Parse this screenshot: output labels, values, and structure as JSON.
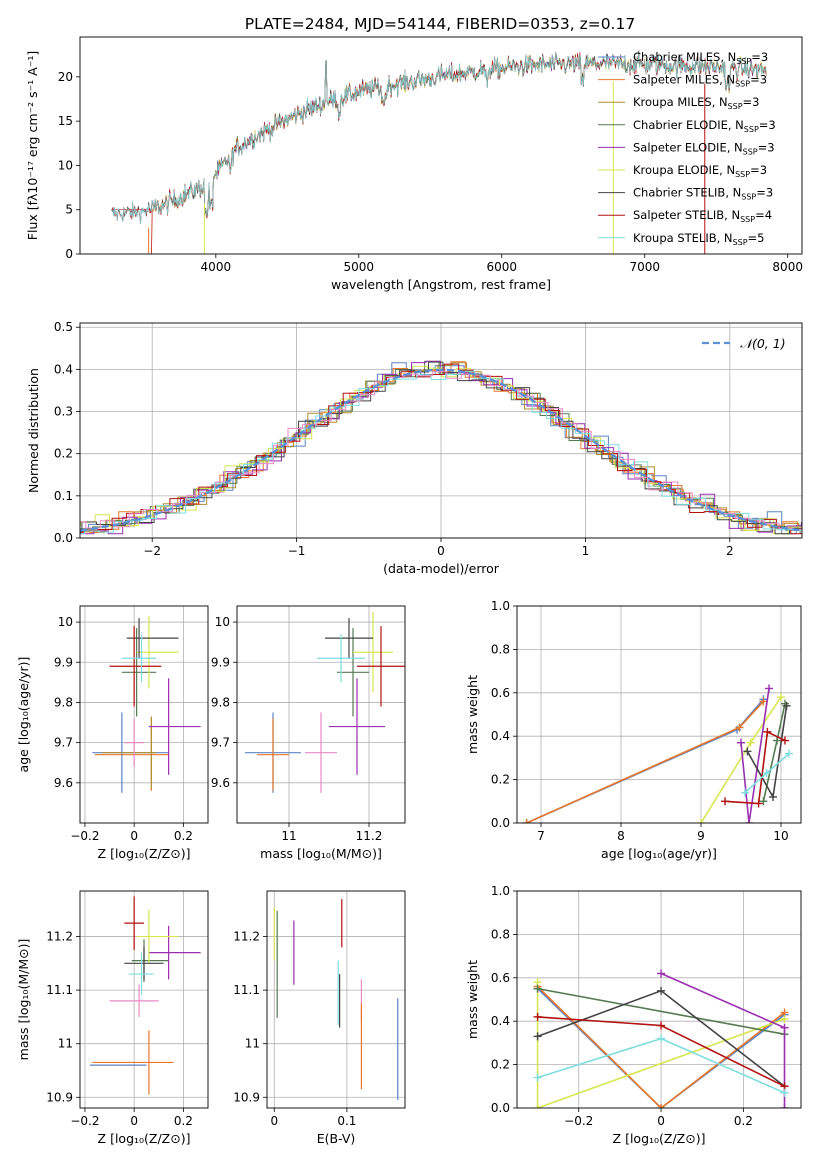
{
  "figure": {
    "title": "PLATE=2484, MJD=54144, FIBERID=0353, z=0.17"
  },
  "chart_data": [
    {
      "id": "spectrum",
      "type": "line",
      "xlabel": "wavelength [Angstrom, rest frame]",
      "ylabel": "Flux [fλ10⁻¹⁷ erg cm⁻² s⁻¹ A⁻¹]",
      "xlim": [
        3050,
        8100
      ],
      "ylim": [
        0,
        24.5
      ],
      "xticks": [
        4000,
        5000,
        6000,
        7000,
        8000
      ],
      "yticks": [
        0,
        5,
        10,
        15,
        20
      ],
      "grid": false,
      "legend_position": "right",
      "spectrum_anchors": {
        "x": [
          3270,
          3500,
          3650,
          3800,
          3950,
          4050,
          4150,
          4300,
          4450,
          4600,
          4800,
          5000,
          5200,
          5400,
          5600,
          5800,
          6000,
          6200,
          6400,
          6600,
          6800,
          7000,
          7200,
          7400,
          7600,
          7800
        ],
        "y": [
          4.5,
          4.8,
          5.6,
          6.8,
          8.0,
          10.0,
          12.0,
          13.5,
          14.8,
          16.0,
          17.3,
          18.3,
          19.0,
          19.6,
          20.1,
          20.6,
          21.0,
          21.3,
          21.4,
          21.5,
          21.5,
          21.4,
          21.3,
          21.2,
          21.0,
          20.8
        ]
      },
      "series": [
        {
          "name": "Chabrier MILES, N",
          "sub": "SSP",
          "tail": "=3",
          "color": "#5b84c4",
          "start": 3500
        },
        {
          "name": "Salpeter MILES, N",
          "sub": "SSP",
          "tail": "=3",
          "color": "#e8772a",
          "start": 3550
        },
        {
          "name": "Kroupa MILES, N",
          "sub": "SSP",
          "tail": "=3",
          "color": "#b08e2e",
          "start": 3560
        },
        {
          "name": "Chabrier ELODIE, N",
          "sub": "SSP",
          "tail": "=3",
          "color": "#557a52",
          "start": 3920
        },
        {
          "name": "Salpeter ELODIE, N",
          "sub": "SSP",
          "tail": "=3",
          "color": "#9a2fb0",
          "start": 3930
        },
        {
          "name": "Kroupa ELODIE, N",
          "sub": "SSP",
          "tail": "=3",
          "color": "#d7e64f",
          "start": 3910
        },
        {
          "name": "Chabrier STELIB, N",
          "sub": "SSP",
          "tail": "=3",
          "color": "#444444",
          "start": 3270
        },
        {
          "name": "Salpeter STELIB, N",
          "sub": "SSP",
          "tail": "=4",
          "color": "#b31010",
          "start": 3270
        },
        {
          "name": "Kroupa STELIB, N",
          "sub": "SSP",
          "tail": "=5",
          "color": "#7fdde0",
          "start": 3270
        }
      ]
    },
    {
      "id": "residuals",
      "type": "bar",
      "xlabel": "(data-model)/error",
      "ylabel": "Normed distribution",
      "xlim": [
        -2.5,
        2.5
      ],
      "ylim": [
        0,
        0.51
      ],
      "xticks": [
        -2,
        -1,
        0,
        1,
        2
      ],
      "yticks": [
        0.0,
        0.1,
        0.2,
        0.3,
        0.4,
        0.5
      ],
      "grid": true,
      "legend_label": "𝒩(0, 1)",
      "legend_position": "top-right",
      "curve_color": "#5b8fd6"
    },
    {
      "id": "age-vs-z",
      "type": "scatter",
      "xlabel": "Z [log₁₀(Z/Z⊙)]",
      "ylabel": "age  [log₁₀(age/yr)]",
      "xlim": [
        -0.22,
        0.3
      ],
      "ylim": [
        9.5,
        10.04
      ],
      "xticks": [
        -0.2,
        0.0,
        0.2
      ],
      "yticks": [
        9.6,
        9.7,
        9.8,
        9.9,
        10.0
      ],
      "grid": true,
      "points": [
        {
          "x": -0.05,
          "y": 9.675,
          "xerr": [
            0.12,
            0.19
          ],
          "yerr": [
            0.1,
            0.1
          ],
          "color": "#5b84c4"
        },
        {
          "x": 0.07,
          "y": 9.67,
          "xerr": [
            0.23,
            0.07
          ],
          "yerr": [
            0.09,
            0.09
          ],
          "color": "#e8772a"
        },
        {
          "x": 0.07,
          "y": 9.675,
          "xerr": [
            0.2,
            0.02
          ],
          "yerr": [
            0.09,
            0.09
          ],
          "color": "#b08e2e"
        },
        {
          "x": 0.01,
          "y": 9.875,
          "xerr": [
            0.06,
            0.08
          ],
          "yerr": [
            0.11,
            0.11
          ],
          "color": "#557a52"
        },
        {
          "x": 0.14,
          "y": 9.74,
          "xerr": [
            0.08,
            0.13
          ],
          "yerr": [
            0.12,
            0.12
          ],
          "color": "#9a2fb0"
        },
        {
          "x": 0.06,
          "y": 9.925,
          "xerr": [
            0.05,
            0.12
          ],
          "yerr": [
            0.09,
            0.09
          ],
          "color": "#d7e64f"
        },
        {
          "x": 0.02,
          "y": 9.96,
          "xerr": [
            0.05,
            0.16
          ],
          "yerr": [
            0.05,
            0.05
          ],
          "color": "#444444"
        },
        {
          "x": 0.0,
          "y": 9.89,
          "xerr": [
            0.1,
            0.11
          ],
          "yerr": [
            0.1,
            0.1
          ],
          "color": "#b31010"
        },
        {
          "x": 0.03,
          "y": 9.91,
          "xerr": [
            0.08,
            0.06
          ],
          "yerr": [
            0.06,
            0.06
          ],
          "color": "#7fdde0"
        },
        {
          "x": 0.0,
          "y": 9.7,
          "xerr": [
            0.04,
            0.04
          ],
          "yerr": [
            0.06,
            0.06
          ],
          "color": "#e88ac4"
        }
      ]
    },
    {
      "id": "age-vs-mass",
      "type": "scatter",
      "xlabel": "mass [log₁₀(M/M⊙)]",
      "ylabel": "",
      "xlim": [
        10.87,
        11.29
      ],
      "ylim": [
        9.5,
        10.04
      ],
      "xticks": [
        11.0,
        11.2
      ],
      "yticks": [
        9.6,
        9.7,
        9.8,
        9.9,
        10.0
      ],
      "grid": true,
      "points": [
        {
          "x": 10.96,
          "y": 9.675,
          "xerr": [
            0.07,
            0.07
          ],
          "yerr": [
            0.1,
            0.1
          ],
          "color": "#5b84c4"
        },
        {
          "x": 10.96,
          "y": 9.67,
          "xerr": [
            0.04,
            0.04
          ],
          "yerr": [
            0.09,
            0.09
          ],
          "color": "#e8772a"
        },
        {
          "x": 11.08,
          "y": 9.675,
          "xerr": [
            0.04,
            0.04
          ],
          "yerr": [
            0.1,
            0.1
          ],
          "color": "#e88ac4"
        },
        {
          "x": 11.16,
          "y": 9.875,
          "xerr": [
            0.04,
            0.04
          ],
          "yerr": [
            0.11,
            0.11
          ],
          "color": "#557a52"
        },
        {
          "x": 11.17,
          "y": 9.74,
          "xerr": [
            0.07,
            0.07
          ],
          "yerr": [
            0.12,
            0.12
          ],
          "color": "#9a2fb0"
        },
        {
          "x": 11.21,
          "y": 9.925,
          "xerr": [
            0.05,
            0.05
          ],
          "yerr": [
            0.1,
            0.1
          ],
          "color": "#d7e64f"
        },
        {
          "x": 11.15,
          "y": 9.96,
          "xerr": [
            0.06,
            0.06
          ],
          "yerr": [
            0.05,
            0.05
          ],
          "color": "#444444"
        },
        {
          "x": 11.23,
          "y": 9.89,
          "xerr": [
            0.06,
            0.06
          ],
          "yerr": [
            0.1,
            0.1
          ],
          "color": "#b31010"
        },
        {
          "x": 11.13,
          "y": 9.91,
          "xerr": [
            0.06,
            0.06
          ],
          "yerr": [
            0.06,
            0.06
          ],
          "color": "#7fdde0"
        }
      ]
    },
    {
      "id": "weight-vs-age",
      "type": "line",
      "xlabel": "age  [log₁₀(age/yr)]",
      "ylabel": "mass weight",
      "xlim": [
        6.7,
        10.25
      ],
      "ylim": [
        0,
        1.0
      ],
      "xticks": [
        7,
        8,
        9,
        10
      ],
      "yticks": [
        0.0,
        0.2,
        0.4,
        0.6,
        0.8,
        1.0
      ],
      "grid": true,
      "series": [
        {
          "color": "#5b84c4",
          "x": [
            6.82,
            9.45,
            9.78
          ],
          "y": [
            0.0,
            0.43,
            0.57
          ]
        },
        {
          "color": "#e8772a",
          "x": [
            6.82,
            9.48,
            9.78
          ],
          "y": [
            0.0,
            0.44,
            0.56
          ]
        },
        {
          "color": "#d7e64f",
          "x": [
            9.0,
            9.62,
            10.0
          ],
          "y": [
            0.0,
            0.37,
            0.58
          ]
        },
        {
          "color": "#557a52",
          "x": [
            9.78,
            9.95,
            10.05
          ],
          "y": [
            0.1,
            0.38,
            0.55
          ]
        },
        {
          "color": "#9a2fb0",
          "x": [
            9.5,
            9.6,
            9.85
          ],
          "y": [
            0.37,
            0.0,
            0.62
          ]
        },
        {
          "color": "#444444",
          "x": [
            9.58,
            9.9,
            10.07
          ],
          "y": [
            0.33,
            0.12,
            0.54
          ]
        },
        {
          "color": "#b31010",
          "x": [
            9.3,
            9.72,
            9.83,
            10.05
          ],
          "y": [
            0.1,
            0.09,
            0.42,
            0.38
          ]
        },
        {
          "color": "#7fdde0",
          "x": [
            9.55,
            9.82,
            10.1
          ],
          "y": [
            0.14,
            0.23,
            0.32
          ]
        }
      ]
    },
    {
      "id": "mass-vs-z",
      "type": "scatter",
      "xlabel": "Z [log₁₀(Z/Z⊙)]",
      "ylabel": "mass [log₁₀(M/M⊙)]",
      "xlim": [
        -0.22,
        0.3
      ],
      "ylim": [
        10.88,
        11.285
      ],
      "xticks": [
        -0.2,
        0.0,
        0.2
      ],
      "yticks": [
        10.9,
        11.0,
        11.1,
        11.2
      ],
      "grid": true,
      "points": [
        {
          "x": 0.0,
          "y": 10.96,
          "xerr": [
            0.18,
            0.05
          ],
          "yerr": [
            0.0,
            0.0
          ],
          "color": "#5b84c4"
        },
        {
          "x": 0.06,
          "y": 10.965,
          "xerr": [
            0.23,
            0.1
          ],
          "yerr": [
            0.06,
            0.06
          ],
          "color": "#e8772a"
        },
        {
          "x": 0.02,
          "y": 11.08,
          "xerr": [
            0.12,
            0.08
          ],
          "yerr": [
            0.03,
            0.03
          ],
          "color": "#e88ac4"
        },
        {
          "x": 0.04,
          "y": 11.155,
          "xerr": [
            0.05,
            0.1
          ],
          "yerr": [
            0.04,
            0.04
          ],
          "color": "#557a52"
        },
        {
          "x": 0.14,
          "y": 11.17,
          "xerr": [
            0.08,
            0.13
          ],
          "yerr": [
            0.05,
            0.05
          ],
          "color": "#9a2fb0"
        },
        {
          "x": 0.06,
          "y": 11.2,
          "xerr": [
            0.05,
            0.12
          ],
          "yerr": [
            0.05,
            0.05
          ],
          "color": "#d7e64f"
        },
        {
          "x": 0.04,
          "y": 11.15,
          "xerr": [
            0.08,
            0.08
          ],
          "yerr": [
            0.03,
            0.03
          ],
          "color": "#444444"
        },
        {
          "x": 0.0,
          "y": 11.225,
          "xerr": [
            0.04,
            0.04
          ],
          "yerr": [
            0.05,
            0.05
          ],
          "color": "#b31010"
        },
        {
          "x": 0.03,
          "y": 11.13,
          "xerr": [
            0.05,
            0.05
          ],
          "yerr": [
            0.04,
            0.04
          ],
          "color": "#7fdde0"
        }
      ]
    },
    {
      "id": "mass-vs-ebv",
      "type": "scatter",
      "xlabel": "E(B-V)",
      "ylabel": "",
      "xlim": [
        -0.01,
        0.18
      ],
      "ylim": [
        10.88,
        11.285
      ],
      "xticks": [
        0.0,
        0.1
      ],
      "yticks": [
        10.9,
        11.0,
        11.1,
        11.2
      ],
      "grid": true,
      "points": [
        {
          "x": 0.0,
          "y": 11.205,
          "xerr": [
            0,
            0
          ],
          "yerr": [
            0.05,
            0.05
          ],
          "color": "#d7e64f"
        },
        {
          "x": 0.004,
          "y": 11.148,
          "xerr": [
            0,
            0
          ],
          "yerr": [
            0.1,
            0.1
          ],
          "color": "#557a52"
        },
        {
          "x": 0.027,
          "y": 11.17,
          "xerr": [
            0,
            0
          ],
          "yerr": [
            0.06,
            0.06
          ],
          "color": "#9a2fb0"
        },
        {
          "x": 0.088,
          "y": 11.095,
          "xerr": [
            0,
            0
          ],
          "yerr": [
            0.06,
            0.06
          ],
          "color": "#7fdde0"
        },
        {
          "x": 0.09,
          "y": 11.08,
          "xerr": [
            0,
            0
          ],
          "yerr": [
            0.05,
            0.05
          ],
          "color": "#444444"
        },
        {
          "x": 0.093,
          "y": 11.225,
          "xerr": [
            0,
            0
          ],
          "yerr": [
            0.045,
            0.045
          ],
          "color": "#b31010"
        },
        {
          "x": 0.12,
          "y": 11.08,
          "xerr": [
            0,
            0
          ],
          "yerr": [
            0.04,
            0.04
          ],
          "color": "#e88ac4"
        },
        {
          "x": 0.12,
          "y": 10.995,
          "xerr": [
            0,
            0
          ],
          "yerr": [
            0.08,
            0.08
          ],
          "color": "#e8772a"
        },
        {
          "x": 0.17,
          "y": 10.99,
          "xerr": [
            0,
            0
          ],
          "yerr": [
            0.095,
            0.095
          ],
          "color": "#5b84c4"
        }
      ]
    },
    {
      "id": "weight-vs-z",
      "type": "line",
      "xlabel": "Z [log₁₀(Z/Z⊙)]",
      "ylabel": "mass weight",
      "xlim": [
        -0.35,
        0.34
      ],
      "ylim": [
        0,
        1.0
      ],
      "xticks": [
        -0.2,
        0.0,
        0.2
      ],
      "yticks": [
        0.0,
        0.2,
        0.4,
        0.6,
        0.8,
        1.0
      ],
      "grid": true,
      "series": [
        {
          "color": "#5b84c4",
          "x": [
            -0.3,
            0.0,
            0.3
          ],
          "y": [
            0.55,
            0.0,
            0.43
          ]
        },
        {
          "color": "#e8772a",
          "x": [
            -0.3,
            0.0,
            0.3
          ],
          "y": [
            0.56,
            0.0,
            0.44
          ]
        },
        {
          "color": "#d7e64f",
          "x": [
            -0.3,
            -0.3,
            0.3
          ],
          "y": [
            0.58,
            0.0,
            0.41
          ]
        },
        {
          "color": "#557a52",
          "x": [
            -0.3,
            0.3
          ],
          "y": [
            0.55,
            0.34
          ]
        },
        {
          "color": "#9a2fb0",
          "x": [
            0.0,
            0.3,
            0.3
          ],
          "y": [
            0.62,
            0.37,
            0.0
          ]
        },
        {
          "color": "#444444",
          "x": [
            -0.3,
            0.0,
            0.3
          ],
          "y": [
            0.33,
            0.54,
            0.1
          ]
        },
        {
          "color": "#b31010",
          "x": [
            -0.3,
            0.0,
            0.3
          ],
          "y": [
            0.42,
            0.38,
            0.1
          ]
        },
        {
          "color": "#7fdde0",
          "x": [
            -0.3,
            0.0,
            0.3
          ],
          "y": [
            0.14,
            0.32,
            0.07
          ]
        }
      ]
    }
  ]
}
